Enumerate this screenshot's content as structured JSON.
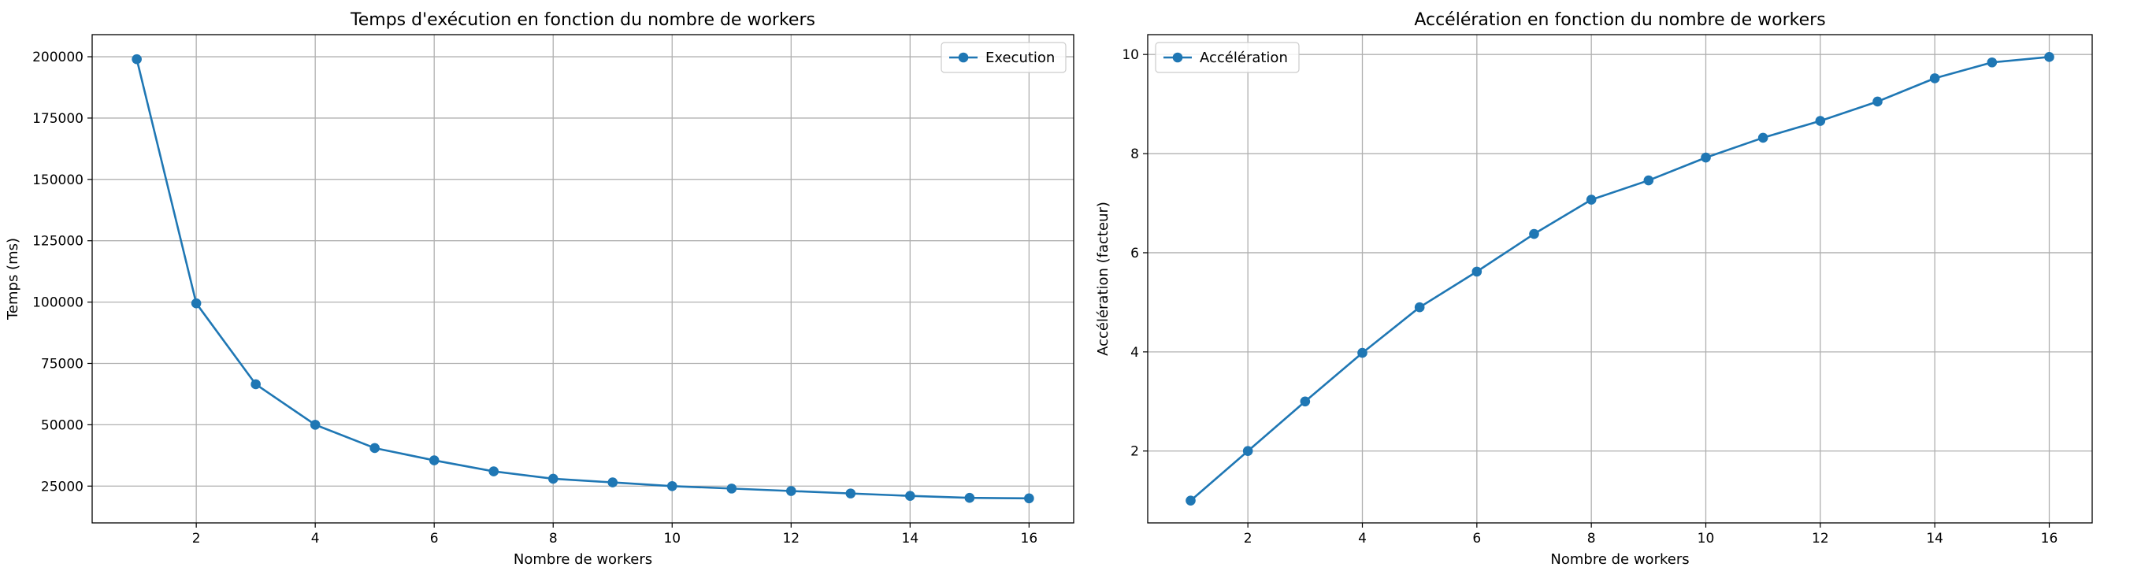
{
  "chart_data": [
    {
      "type": "line",
      "title": "Temps d'exécution en fonction du nombre de workers",
      "xlabel": "Nombre de workers",
      "ylabel": "Temps (ms)",
      "xlim": [
        0.25,
        16.75
      ],
      "ylim": [
        10000,
        209000
      ],
      "x_ticks": [
        2,
        4,
        6,
        8,
        10,
        12,
        14,
        16
      ],
      "y_ticks": [
        25000,
        50000,
        75000,
        100000,
        125000,
        150000,
        175000,
        200000
      ],
      "grid": true,
      "legend_position": "top-right",
      "series": [
        {
          "name": "Execution",
          "color": "#1f77b4",
          "marker": "circle",
          "x": [
            1,
            2,
            3,
            4,
            5,
            6,
            7,
            8,
            9,
            10,
            11,
            12,
            13,
            14,
            15,
            16
          ],
          "y": [
            199000,
            99500,
            66500,
            50000,
            40500,
            35500,
            31000,
            28000,
            26500,
            25000,
            24000,
            23000,
            22000,
            21000,
            20200,
            20000
          ]
        }
      ]
    },
    {
      "type": "line",
      "title": "Accélération en fonction du nombre de workers",
      "xlabel": "Nombre de workers",
      "ylabel": "Accélération (facteur)",
      "xlim": [
        0.25,
        16.75
      ],
      "ylim": [
        0.55,
        10.4
      ],
      "x_ticks": [
        2,
        4,
        6,
        8,
        10,
        12,
        14,
        16
      ],
      "y_ticks": [
        2,
        4,
        6,
        8,
        10
      ],
      "grid": true,
      "legend_position": "top-left",
      "series": [
        {
          "name": "Accélération",
          "color": "#1f77b4",
          "marker": "circle",
          "x": [
            1,
            2,
            3,
            4,
            5,
            6,
            7,
            8,
            9,
            10,
            11,
            12,
            13,
            14,
            15,
            16
          ],
          "y": [
            1.0,
            2.0,
            3.0,
            3.98,
            4.9,
            5.62,
            6.38,
            7.07,
            7.46,
            7.92,
            8.32,
            8.66,
            9.05,
            9.52,
            9.84,
            9.95
          ]
        }
      ]
    }
  ]
}
